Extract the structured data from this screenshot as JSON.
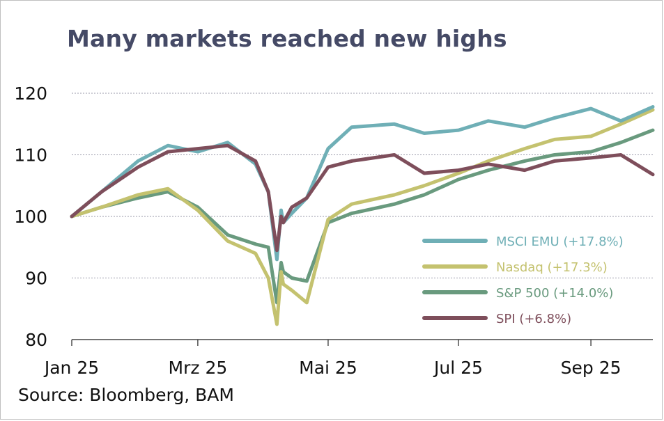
{
  "title": "Many markets reached new highs",
  "source": "Source: Bloomberg, BAM",
  "colors": {
    "title": "#454a66",
    "grid": "#9a9aaa",
    "axis": "#222222"
  },
  "chart_data": {
    "type": "line",
    "title": "Many markets reached new highs",
    "xlabel": "",
    "ylabel": "",
    "ylim": [
      80,
      120
    ],
    "yticks": [
      "80",
      "90",
      "100",
      "110",
      "120"
    ],
    "y_grid": true,
    "legend_position": "bottom-right",
    "x_ticks": [
      "Jan 25",
      "Mrz 25",
      "Mai 25",
      "Jul 25",
      "Sep 25"
    ],
    "x": [
      "2025-01-01",
      "2025-01-15",
      "2025-02-01",
      "2025-02-15",
      "2025-03-01",
      "2025-03-15",
      "2025-03-28",
      "2025-04-03",
      "2025-04-07",
      "2025-04-09",
      "2025-04-10",
      "2025-04-14",
      "2025-04-21",
      "2025-05-01",
      "2025-05-12",
      "2025-06-01",
      "2025-06-15",
      "2025-07-01",
      "2025-07-15",
      "2025-08-01",
      "2025-08-15",
      "2025-09-01",
      "2025-09-15",
      "2025-09-30"
    ],
    "series": [
      {
        "name": "MSCI EMU (+17.8%)",
        "color": "#6fafb6",
        "values": [
          100,
          104.0,
          109.0,
          111.5,
          110.5,
          112.0,
          108.5,
          104.0,
          93.0,
          101.0,
          99.0,
          100.5,
          103.0,
          111.0,
          114.5,
          115.0,
          113.5,
          114.0,
          115.5,
          114.5,
          116.0,
          117.5,
          115.5,
          117.8
        ]
      },
      {
        "name": "Nasdaq (+17.3%)",
        "color": "#c4c26f",
        "values": [
          100,
          101.5,
          103.5,
          104.5,
          101.0,
          96.0,
          94.0,
          90.0,
          82.5,
          91.0,
          89.0,
          88.0,
          86.0,
          99.5,
          102.0,
          103.5,
          105.0,
          107.0,
          109.0,
          111.0,
          112.5,
          113.0,
          115.0,
          117.3
        ]
      },
      {
        "name": "S&P 500 (+14.0%)",
        "color": "#699a7e",
        "values": [
          100,
          101.5,
          103.0,
          104.0,
          101.5,
          97.0,
          95.5,
          95.0,
          86.0,
          92.5,
          91.0,
          90.0,
          89.5,
          99.0,
          100.5,
          102.0,
          103.5,
          106.0,
          107.5,
          109.0,
          110.0,
          110.5,
          112.0,
          114.0
        ]
      },
      {
        "name": "SPI (+6.8%)",
        "color": "#7e4e5b",
        "values": [
          100,
          104.0,
          108.0,
          110.5,
          111.0,
          111.5,
          109.0,
          104.0,
          94.5,
          100.0,
          99.0,
          101.5,
          103.0,
          108.0,
          109.0,
          110.0,
          107.0,
          107.5,
          108.5,
          107.5,
          109.0,
          109.5,
          110.0,
          106.8
        ]
      }
    ]
  }
}
